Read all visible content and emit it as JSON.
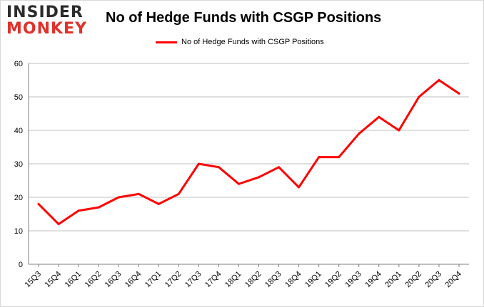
{
  "logo": {
    "line1": "INSIDER",
    "line2": "MONKEY"
  },
  "colors": {
    "series": "#ff0000",
    "grid": "#bfbfbf",
    "axis": "#808080",
    "logo_red": "#e0312a"
  },
  "chart_data": {
    "type": "line",
    "title": "No of Hedge Funds with CSGP Positions",
    "xlabel": "",
    "ylabel": "",
    "categories": [
      "15Q3",
      "15Q4",
      "16Q1",
      "16Q2",
      "16Q3",
      "16Q4",
      "17Q1",
      "17Q2",
      "17Q3",
      "17Q4",
      "18Q1",
      "18Q2",
      "18Q3",
      "18Q4",
      "19Q1",
      "19Q2",
      "19Q3",
      "19Q4",
      "20Q1",
      "20Q2",
      "20Q3",
      "20Q4"
    ],
    "series": [
      {
        "name": "No of Hedge Funds with CSGP Positions",
        "values": [
          18,
          12,
          16,
          17,
          20,
          21,
          18,
          21,
          30,
          29,
          24,
          26,
          29,
          23,
          32,
          32,
          39,
          44,
          40,
          50,
          55,
          51
        ]
      }
    ],
    "ylim": [
      0,
      60
    ],
    "yticks": [
      0,
      10,
      20,
      30,
      40,
      50,
      60
    ],
    "grid": true,
    "legend": "top-center"
  }
}
